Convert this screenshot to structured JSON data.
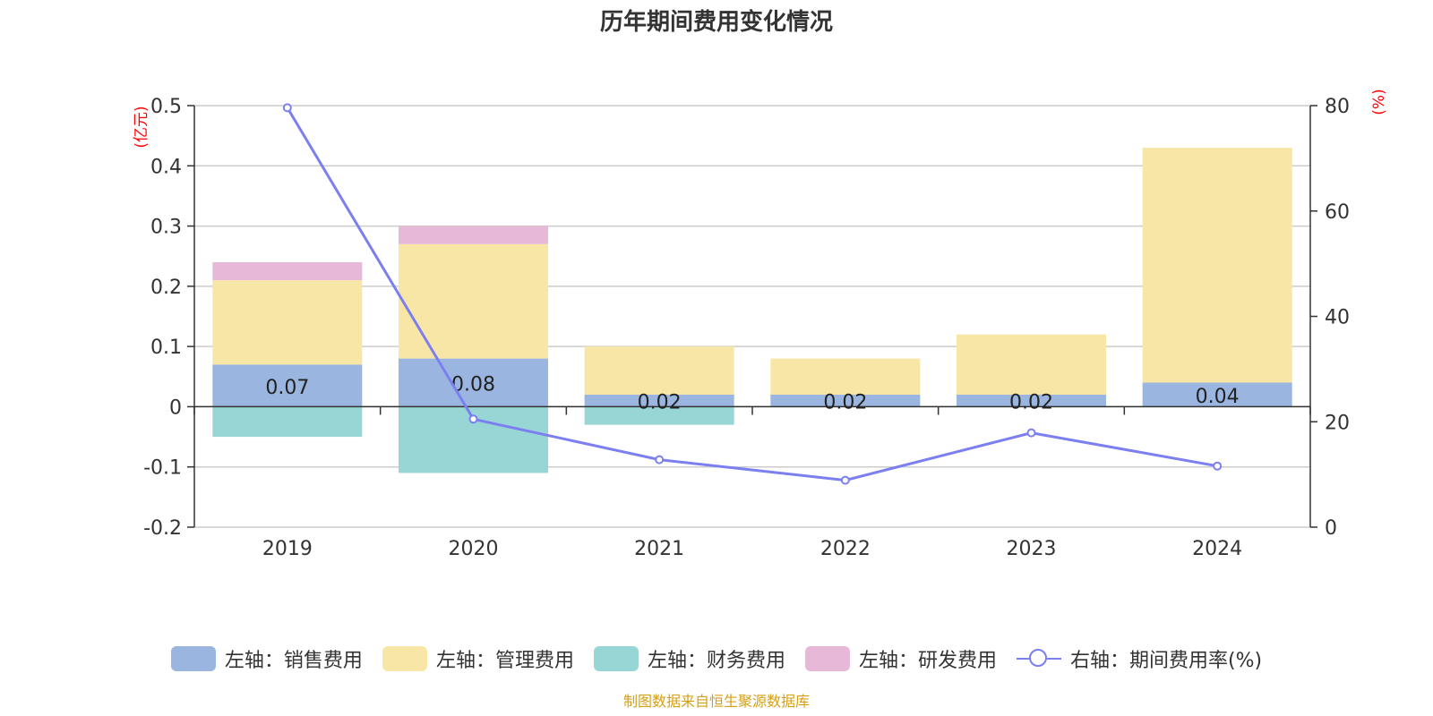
{
  "title": "历年期间费用变化情况",
  "source": "制图数据来自恒生聚源数据库",
  "colors": {
    "sales": "#9ab5e0",
    "admin": "#f8e6a7",
    "finance": "#98d5d5",
    "rnd": "#e8b8d8",
    "rate": "#7b7ff0",
    "axis_unit": "#ff0000",
    "source": "#d4a017"
  },
  "legend": [
    {
      "key": "sales",
      "label": "左轴：销售费用"
    },
    {
      "key": "admin",
      "label": "左轴：管理费用"
    },
    {
      "key": "finance",
      "label": "左轴：财务费用"
    },
    {
      "key": "rnd",
      "label": "左轴：研发费用"
    },
    {
      "key": "rate",
      "label": "右轴：期间费用率(%)"
    }
  ],
  "chart_data": {
    "type": "bar",
    "stacked": true,
    "categories": [
      "2019",
      "2020",
      "2021",
      "2022",
      "2023",
      "2024"
    ],
    "series": [
      {
        "name": "左轴：销售费用",
        "key": "sales",
        "axis": "left",
        "values": [
          0.07,
          0.08,
          0.02,
          0.02,
          0.02,
          0.04
        ]
      },
      {
        "name": "左轴：管理费用",
        "key": "admin",
        "axis": "left",
        "values": [
          0.14,
          0.19,
          0.08,
          0.06,
          0.1,
          0.39
        ]
      },
      {
        "name": "左轴：财务费用",
        "key": "finance",
        "axis": "left",
        "values": [
          -0.05,
          -0.11,
          -0.03,
          0,
          0,
          0
        ]
      },
      {
        "name": "左轴：研发费用",
        "key": "rnd",
        "axis": "left",
        "values": [
          0.03,
          0.03,
          0,
          0,
          0,
          0
        ]
      },
      {
        "name": "右轴：期间费用率(%)",
        "key": "rate",
        "axis": "right",
        "type": "line",
        "values": [
          79.6,
          20.5,
          12.8,
          8.9,
          17.9,
          11.6
        ]
      }
    ],
    "data_labels": {
      "series": "sales",
      "labels": [
        "0.07",
        "0.08",
        "0.02",
        "0.02",
        "0.02",
        "0.04"
      ]
    },
    "left_axis": {
      "unit": "(亿元)",
      "min": -0.2,
      "max": 0.5,
      "ticks": [
        -0.2,
        -0.1,
        0,
        0.1,
        0.2,
        0.3,
        0.4,
        0.5
      ],
      "tick_labels": [
        "-0.2",
        "-0.1",
        "0",
        "0.1",
        "0.2",
        "0.3",
        "0.4",
        "0.5"
      ]
    },
    "right_axis": {
      "unit": "(%)",
      "min": 0,
      "max": 80,
      "ticks": [
        0,
        20,
        40,
        60,
        80
      ],
      "tick_labels": [
        "0",
        "20",
        "40",
        "60",
        "80"
      ]
    },
    "grid": true,
    "legend_position": "bottom"
  }
}
